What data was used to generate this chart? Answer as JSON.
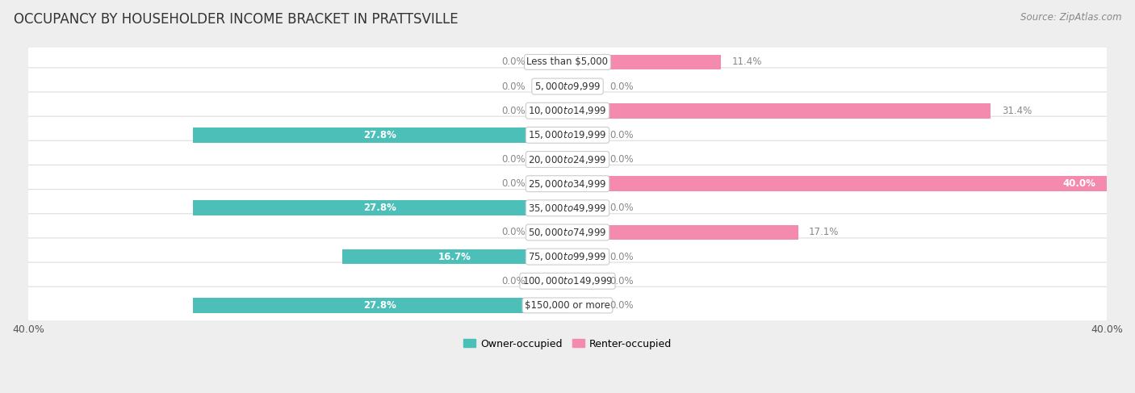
{
  "title": "OCCUPANCY BY HOUSEHOLDER INCOME BRACKET IN PRATTSVILLE",
  "source": "Source: ZipAtlas.com",
  "categories": [
    "Less than $5,000",
    "$5,000 to $9,999",
    "$10,000 to $14,999",
    "$15,000 to $19,999",
    "$20,000 to $24,999",
    "$25,000 to $34,999",
    "$35,000 to $49,999",
    "$50,000 to $74,999",
    "$75,000 to $99,999",
    "$100,000 to $149,999",
    "$150,000 or more"
  ],
  "owner_values": [
    0.0,
    0.0,
    0.0,
    27.8,
    0.0,
    0.0,
    27.8,
    0.0,
    16.7,
    0.0,
    27.8
  ],
  "renter_values": [
    11.4,
    0.0,
    31.4,
    0.0,
    0.0,
    40.0,
    0.0,
    17.1,
    0.0,
    0.0,
    0.0
  ],
  "owner_color": "#4BBFB8",
  "renter_color": "#F48BAE",
  "owner_stub_color": "#A8DDD9",
  "renter_stub_color": "#F8C8D8",
  "owner_label": "Owner-occupied",
  "renter_label": "Renter-occupied",
  "axis_max": 40.0,
  "stub_size": 2.5,
  "bg_color": "#eeeeee",
  "row_bg": "#f8f8f8",
  "row_edge": "#dddddd",
  "title_fontsize": 12,
  "label_fontsize": 9,
  "tick_fontsize": 9,
  "source_fontsize": 8.5,
  "bar_height": 0.62,
  "cat_label_fontsize": 8.5,
  "val_label_fontsize": 8.5
}
